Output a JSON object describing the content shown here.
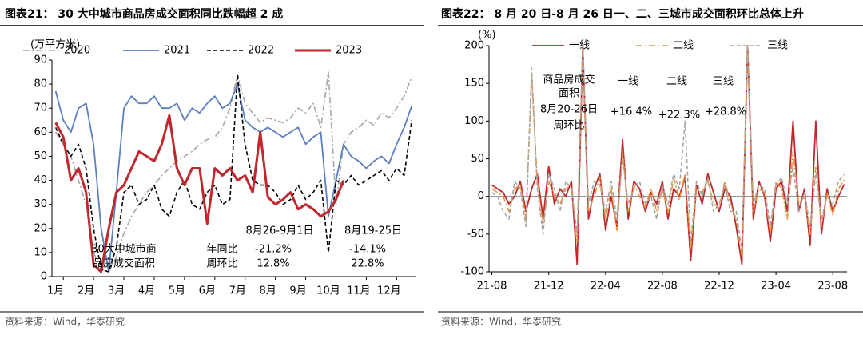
{
  "chart_data": [
    {
      "type": "line",
      "title": "图表21：  30 大中城市商品房成交面积同比跌幅超 2 成",
      "y_label": "(万平方米)",
      "source": "资料来源：Wind，华泰研究",
      "categories": [
        null,
        "1月",
        null,
        null,
        null,
        "2月",
        null,
        null,
        null,
        "3月",
        null,
        null,
        null,
        "4月",
        null,
        null,
        null,
        "5月",
        null,
        null,
        null,
        "6月",
        null,
        null,
        null,
        "7月",
        null,
        null,
        null,
        "8月",
        null,
        null,
        null,
        "9月",
        null,
        null,
        null,
        "10月",
        null,
        null,
        null,
        "11月",
        null,
        null,
        null,
        "12月",
        null,
        null
      ],
      "ylim": [
        0,
        90
      ],
      "yticks": [
        0,
        10,
        20,
        30,
        40,
        50,
        60,
        70,
        80,
        90
      ],
      "legend": "top",
      "series": [
        {
          "name": "2020",
          "color": "#a6a6a6",
          "line_style": "dashdot",
          "values": [
            60,
            55,
            50,
            40,
            30,
            10,
            3,
            2,
            8,
            18,
            25,
            30,
            35,
            38,
            42,
            45,
            48,
            50,
            52,
            55,
            57,
            58,
            62,
            70,
            84,
            72,
            68,
            64,
            66,
            65,
            64,
            66,
            70,
            68,
            72,
            62,
            85,
            30,
            55,
            60,
            62,
            65,
            63,
            68,
            66,
            70,
            75,
            83
          ]
        },
        {
          "name": "2021",
          "color": "#5b7fc2",
          "line_style": "solid",
          "values": [
            77,
            65,
            60,
            70,
            72,
            55,
            20,
            2,
            35,
            70,
            75,
            72,
            72,
            75,
            70,
            70,
            72,
            65,
            70,
            68,
            72,
            75,
            70,
            72,
            80,
            65,
            62,
            60,
            62,
            60,
            58,
            60,
            62,
            55,
            58,
            60,
            25,
            40,
            55,
            50,
            48,
            45,
            48,
            50,
            47,
            55,
            62,
            71
          ]
        },
        {
          "name": "2022",
          "color": "#000000",
          "line_style": "dash",
          "values": [
            62,
            55,
            50,
            55,
            45,
            20,
            3,
            2,
            12,
            35,
            38,
            30,
            32,
            38,
            28,
            25,
            35,
            40,
            30,
            28,
            35,
            38,
            30,
            32,
            84,
            55,
            40,
            38,
            38,
            35,
            30,
            32,
            38,
            32,
            35,
            40,
            10,
            40,
            38,
            42,
            38,
            40,
            42,
            44,
            40,
            45,
            42,
            65
          ]
        },
        {
          "name": "2023",
          "color": "#c0282d",
          "line_style": "thick",
          "values": [
            64,
            58,
            40,
            45,
            35,
            5,
            2,
            20,
            35,
            38,
            45,
            52,
            50,
            48,
            55,
            67,
            45,
            38,
            45,
            45,
            22,
            45,
            42,
            45,
            40,
            42,
            35,
            60,
            33,
            30,
            32,
            35,
            28,
            30,
            28,
            25,
            27,
            32,
            40,
            null,
            null,
            null,
            null,
            null,
            null,
            null,
            null,
            null
          ]
        }
      ],
      "annotations": [
        "30大中城市商",
        "品房成交面积",
        "年同比",
        "周环比",
        "8月26-9月1日",
        "-21.2%",
        "12.8%",
        "8月19-25日",
        "-14.1%",
        "22.8%"
      ]
    },
    {
      "type": "line",
      "title": "图表22：  8 月 20 日-8 月 26 日一、二、三城市成交面积环比总体上升",
      "y_label": "(%)",
      "source": "资料来源：Wind，华泰研究",
      "categories": [
        "21-08",
        null,
        null,
        null,
        null,
        null,
        null,
        null,
        null,
        null,
        "21-12",
        null,
        null,
        null,
        null,
        null,
        null,
        null,
        null,
        null,
        "22-04",
        null,
        null,
        null,
        null,
        null,
        null,
        null,
        null,
        null,
        "22-08",
        null,
        null,
        null,
        null,
        null,
        null,
        null,
        null,
        null,
        "22-12",
        null,
        null,
        null,
        null,
        null,
        null,
        null,
        null,
        null,
        "23-04",
        null,
        null,
        null,
        null,
        null,
        null,
        null,
        null,
        null,
        "23-08",
        null,
        null
      ],
      "ylim": [
        -100,
        200
      ],
      "yticks": [
        -100,
        -50,
        0,
        50,
        100,
        150,
        200
      ],
      "zero_line": true,
      "legend": "top",
      "series": [
        {
          "name": "一线",
          "color": "#c0282d",
          "line_style": "solid",
          "values": [
            15,
            10,
            5,
            -10,
            0,
            20,
            -20,
            10,
            30,
            -30,
            40,
            -10,
            10,
            0,
            20,
            -90,
            200,
            -30,
            10,
            30,
            -45,
            0,
            -40,
            75,
            -30,
            20,
            10,
            -20,
            5,
            -10,
            20,
            -30,
            10,
            0,
            25,
            -85,
            15,
            -10,
            30,
            5,
            -20,
            10,
            0,
            -40,
            -90,
            200,
            -30,
            20,
            0,
            -60,
            10,
            20,
            -20,
            100,
            -20,
            10,
            -65,
            100,
            -50,
            10,
            -20,
            0,
            16
          ]
        },
        {
          "name": "二线",
          "color": "#e8923a",
          "line_style": "dashdot",
          "values": [
            10,
            5,
            0,
            -20,
            10,
            15,
            -30,
            160,
            20,
            -40,
            20,
            0,
            -10,
            10,
            15,
            -60,
            200,
            -20,
            0,
            25,
            -30,
            10,
            -45,
            60,
            -20,
            15,
            0,
            -15,
            10,
            -20,
            10,
            -20,
            25,
            -5,
            30,
            -70,
            10,
            5,
            20,
            -10,
            -15,
            20,
            -10,
            -30,
            -80,
            200,
            -20,
            10,
            5,
            -50,
            20,
            10,
            -30,
            60,
            -10,
            0,
            -50,
            40,
            -40,
            5,
            -25,
            10,
            22
          ]
        },
        {
          "name": "三线",
          "color": "#a6a6a6",
          "line_style": "dash",
          "values": [
            5,
            0,
            -20,
            -30,
            20,
            10,
            -40,
            170,
            10,
            -50,
            30,
            10,
            -20,
            20,
            10,
            -50,
            200,
            -10,
            20,
            15,
            -20,
            20,
            -30,
            50,
            -10,
            10,
            20,
            -10,
            0,
            -30,
            15,
            -10,
            30,
            10,
            100,
            -60,
            20,
            0,
            25,
            -20,
            -10,
            15,
            -20,
            -20,
            -70,
            200,
            -10,
            15,
            10,
            -40,
            15,
            25,
            -10,
            40,
            -20,
            5,
            -40,
            30,
            -30,
            0,
            -10,
            20,
            29
          ]
        }
      ],
      "annotations": [
        "商品房成交",
        "面积",
        "8月20-26日",
        "周环比",
        "一线",
        "二线",
        "三线",
        "+16.4%",
        "+22.3%",
        "+28.8%"
      ]
    }
  ]
}
